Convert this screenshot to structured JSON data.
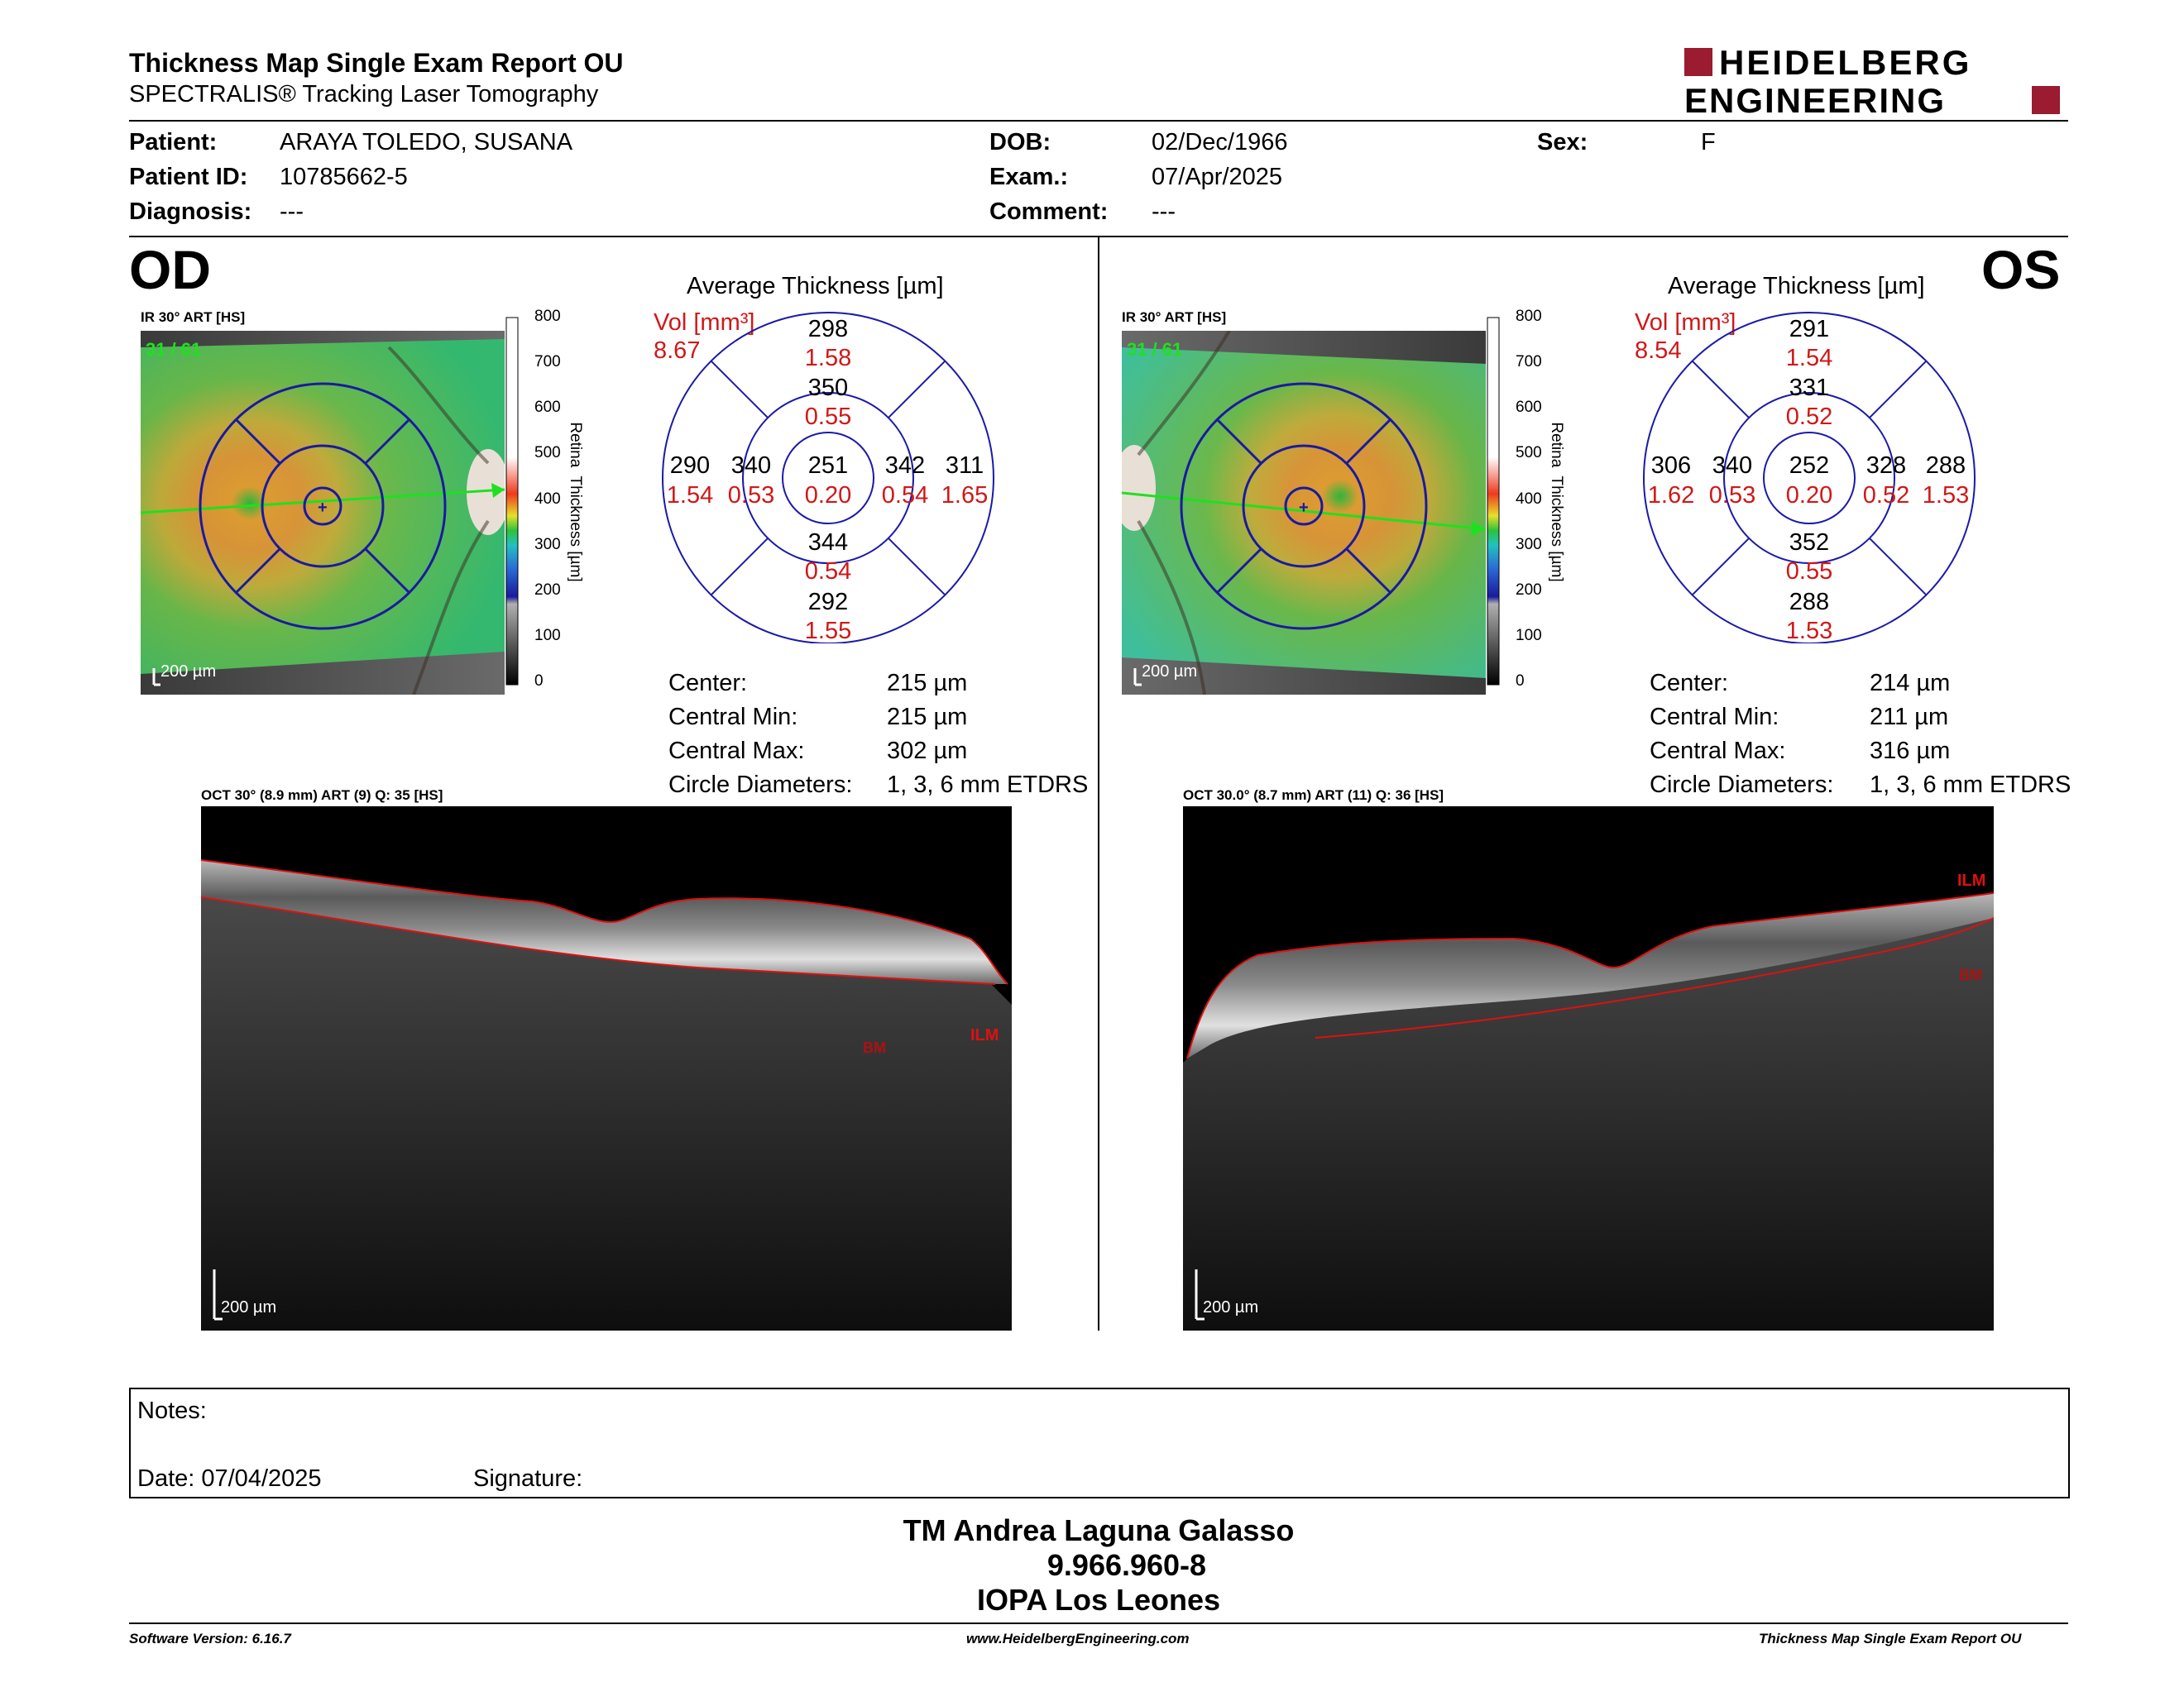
{
  "header": {
    "title": "Thickness Map Single Exam Report OU",
    "subtitle": "SPECTRALIS® Tracking Laser Tomography",
    "logo_line1": "HEIDELBERG",
    "logo_line2": "ENGINEERING",
    "brand_color": "#9b1b30"
  },
  "patient": {
    "patient_label": "Patient:",
    "patient_value": "ARAYA TOLEDO, SUSANA",
    "id_label": "Patient ID:",
    "id_value": "10785662-5",
    "diag_label": "Diagnosis:",
    "diag_value": "---",
    "dob_label": "DOB:",
    "dob_value": "02/Dec/1966",
    "exam_label": "Exam.:",
    "exam_value": "07/Apr/2025",
    "comment_label": "Comment:",
    "comment_value": "---",
    "sex_label": "Sex:",
    "sex_value": "F"
  },
  "od": {
    "eye": "OD",
    "ir_label": "IR 30° ART [HS]",
    "ir_counter": "31 / 61",
    "ir_scale": "200 µm",
    "avg_title": "Average Thickness [µm]",
    "vol_label": "Vol [mm³]",
    "vol_value": "8.67",
    "sectors": {
      "center": {
        "t": "251",
        "v": "0.20"
      },
      "inner_sup": {
        "t": "350",
        "v": "0.55"
      },
      "inner_inf": {
        "t": "344",
        "v": "0.54"
      },
      "inner_left": {
        "t": "340",
        "v": "0.53"
      },
      "inner_right": {
        "t": "342",
        "v": "0.54"
      },
      "outer_sup": {
        "t": "298",
        "v": "1.58"
      },
      "outer_inf": {
        "t": "292",
        "v": "1.55"
      },
      "outer_left": {
        "t": "290",
        "v": "1.54"
      },
      "outer_right": {
        "t": "311",
        "v": "1.65"
      }
    },
    "stats": {
      "center_label": "Center:",
      "center_value": "215 µm",
      "min_label": "Central Min:",
      "min_value": "215 µm",
      "max_label": "Central Max:",
      "max_value": "302 µm",
      "diam_label": "Circle Diameters:",
      "diam_value": "1, 3, 6 mm ETDRS"
    },
    "oct_label": "OCT 30° (8.9 mm) ART (9) Q: 35 [HS]",
    "oct_scale": "200 µm",
    "ilm": "ILM",
    "bm": "BM"
  },
  "os": {
    "eye": "OS",
    "ir_label": "IR 30° ART [HS]",
    "ir_counter": "31 / 61",
    "ir_scale": "200 µm",
    "avg_title": "Average Thickness [µm]",
    "vol_label": "Vol [mm³]",
    "vol_value": "8.54",
    "sectors": {
      "center": {
        "t": "252",
        "v": "0.20"
      },
      "inner_sup": {
        "t": "331",
        "v": "0.52"
      },
      "inner_inf": {
        "t": "352",
        "v": "0.55"
      },
      "inner_left": {
        "t": "340",
        "v": "0.53"
      },
      "inner_right": {
        "t": "328",
        "v": "0.52"
      },
      "outer_sup": {
        "t": "291",
        "v": "1.54"
      },
      "outer_inf": {
        "t": "288",
        "v": "1.53"
      },
      "outer_left": {
        "t": "306",
        "v": "1.62"
      },
      "outer_right": {
        "t": "288",
        "v": "1.53"
      }
    },
    "stats": {
      "center_label": "Center:",
      "center_value": "214 µm",
      "min_label": "Central Min:",
      "min_value": "211 µm",
      "max_label": "Central Max:",
      "max_value": "316 µm",
      "diam_label": "Circle Diameters:",
      "diam_value": "1, 3, 6 mm ETDRS"
    },
    "oct_label": "OCT 30.0° (8.7 mm) ART (11) Q: 36 [HS]",
    "oct_scale": "200 µm",
    "ilm": "ILM",
    "bm": "BM"
  },
  "colorbar": {
    "ticks": [
      "800",
      "700",
      "600",
      "500",
      "400",
      "300",
      "200",
      "100",
      "0"
    ],
    "axis_label": "Retina  Thickness [µm]"
  },
  "notes": {
    "notes_label": "Notes:",
    "date_label": "Date: 07/04/2025",
    "signature_label": "Signature:"
  },
  "signature_block": {
    "line1": "TM Andrea Laguna Galasso",
    "line2": "9.966.960-8",
    "line3": "IOPA Los Leones"
  },
  "footer": {
    "software": "Software Version: 6.16.7",
    "website": "www.HeidelbergEngineering.com",
    "report": "Thickness Map Single Exam Report OU"
  }
}
